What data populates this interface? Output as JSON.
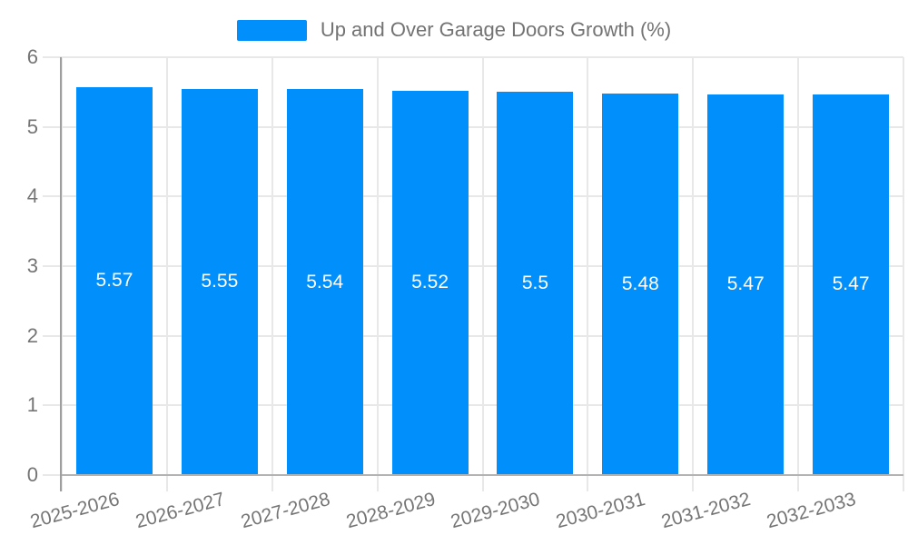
{
  "chart_data": {
    "type": "bar",
    "categories": [
      "2025-2026",
      "2026-2027",
      "2027-2028",
      "2028-2029",
      "2029-2030",
      "2030-2031",
      "2031-2032",
      "2032-2033"
    ],
    "series": [
      {
        "name": "Up and Over Garage Doors Growth (%)",
        "values": [
          5.57,
          5.55,
          5.54,
          5.52,
          5.5,
          5.48,
          5.47,
          5.47
        ]
      }
    ],
    "value_labels": [
      "5.57",
      "5.55",
      "5.54",
      "5.52",
      "5.5",
      "5.48",
      "5.47",
      "5.47"
    ],
    "legend": [
      "Up and Over Garage Doors Growth (%)"
    ],
    "legend_position": "top",
    "xlabel": "",
    "ylabel": "",
    "ylim": [
      0,
      6
    ],
    "yticks": [
      0,
      1,
      2,
      3,
      4,
      5,
      6
    ],
    "grid": true,
    "colors": {
      "bar": "#008FFB",
      "value_label": "#FFFFFF",
      "axis_text": "#757575",
      "gridline": "#E8E8E8",
      "y_axis_line": "#9E9E9E",
      "x_axis_line": "#B3B3B3",
      "background": "#FFFFFF"
    }
  }
}
